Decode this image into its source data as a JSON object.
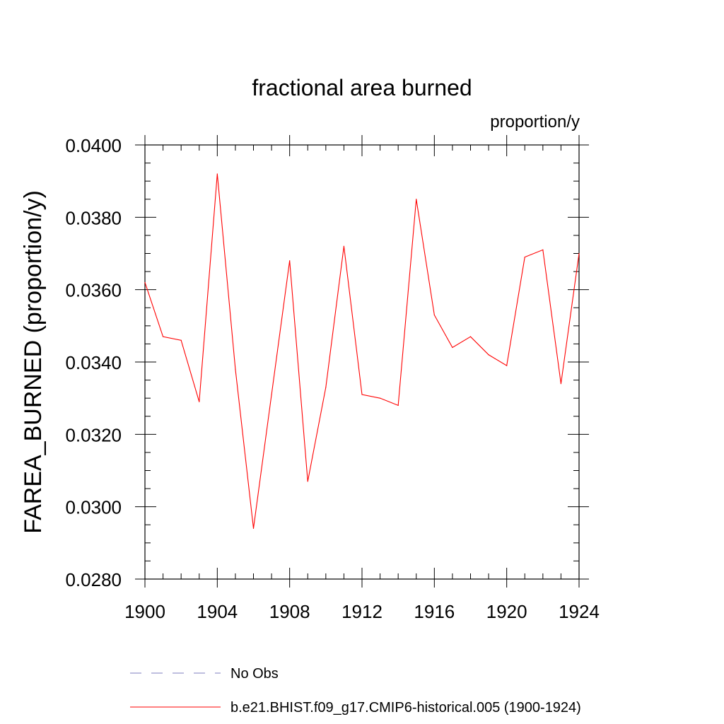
{
  "chart_data": {
    "type": "line",
    "title": "fractional area burned",
    "units_label": "proportion/y",
    "xlabel": "",
    "ylabel": "FAREA_BURNED  (proportion/y)",
    "xlim": [
      1900,
      1924
    ],
    "ylim": [
      0.028,
      0.04
    ],
    "x_ticks": [
      1900,
      1904,
      1908,
      1912,
      1916,
      1920,
      1924
    ],
    "x_tick_labels": [
      "1900",
      "1904",
      "1908",
      "1912",
      "1916",
      "1920",
      "1924"
    ],
    "y_ticks": [
      0.028,
      0.03,
      0.032,
      0.034,
      0.036,
      0.038,
      0.04
    ],
    "y_tick_labels": [
      "0.0280",
      "0.0300",
      "0.0320",
      "0.0340",
      "0.0360",
      "0.0380",
      "0.0400"
    ],
    "grid": false,
    "legend_position": "bottom",
    "series": [
      {
        "name": "b.e21.BHIST.f09_g17.CMIP6-historical.005 (1900-1924)",
        "color": "#ff0000",
        "style": "solid",
        "x": [
          1900,
          1901,
          1902,
          1903,
          1904,
          1905,
          1906,
          1907,
          1908,
          1909,
          1910,
          1911,
          1912,
          1913,
          1914,
          1915,
          1916,
          1917,
          1918,
          1919,
          1920,
          1921,
          1922,
          1923,
          1924
        ],
        "values": [
          0.0362,
          0.0347,
          0.0346,
          0.0329,
          0.0392,
          0.0338,
          0.0294,
          0.0331,
          0.0368,
          0.0307,
          0.0333,
          0.0372,
          0.0331,
          0.033,
          0.0328,
          0.0385,
          0.0353,
          0.0344,
          0.0347,
          0.0342,
          0.0339,
          0.0369,
          0.0371,
          0.0334,
          0.037
        ]
      }
    ],
    "legend": [
      {
        "label": "No Obs",
        "color": "#7f7fbf",
        "style": "dashed"
      },
      {
        "label": "b.e21.BHIST.f09_g17.CMIP6-historical.005 (1900-1924)",
        "color": "#ff0000",
        "style": "solid"
      }
    ]
  }
}
